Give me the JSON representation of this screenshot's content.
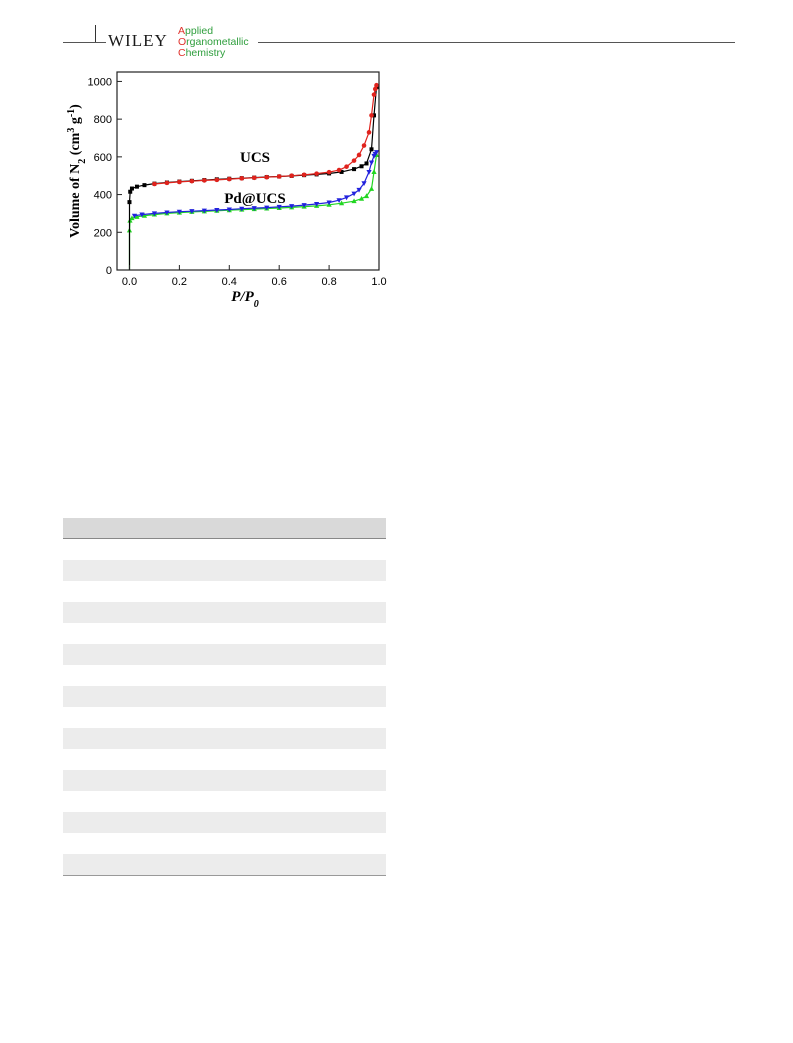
{
  "header": {
    "publisher": "WILEY",
    "journal": {
      "line1_cap": "A",
      "line1_rest": "pplied",
      "line2_cap": "O",
      "line2_rest": "rganometallic",
      "line3_cap": "C",
      "line3_rest": "hemistry"
    }
  },
  "chart_data": {
    "type": "line",
    "title": "",
    "xlabel": "P/P0",
    "ylabel": "Volume of N2 (cm3 g-1)",
    "xlim": [
      -0.05,
      1.0
    ],
    "ylim": [
      0,
      1050
    ],
    "xticks": [
      "0.0",
      "0.2",
      "0.4",
      "0.6",
      "0.8",
      "1.0"
    ],
    "yticks": [
      "0",
      "200",
      "400",
      "600",
      "800",
      "1000"
    ],
    "annotations": [
      "UCS",
      "Pd@UCS"
    ],
    "colors": {
      "ucs_ads": "#000000",
      "ucs_des": "#e0221c",
      "pd_ads": "#22d622",
      "pd_des": "#2222dd"
    },
    "series": [
      {
        "x": [
          0.0,
          0.0,
          0.003,
          0.01,
          0.03,
          0.06,
          0.1,
          0.15,
          0.2,
          0.25,
          0.3,
          0.35,
          0.4,
          0.45,
          0.5,
          0.55,
          0.6,
          0.65,
          0.7,
          0.75,
          0.8,
          0.85,
          0.9,
          0.93,
          0.95,
          0.97,
          0.98,
          0.99
        ],
        "y": [
          0,
          360,
          415,
          432,
          442,
          450,
          458,
          464,
          469,
          473,
          477,
          481,
          484,
          487,
          490,
          493,
          496,
          499,
          503,
          507,
          512,
          520,
          535,
          550,
          565,
          640,
          820,
          970
        ]
      },
      {
        "x": [
          0.99,
          0.985,
          0.98,
          0.97,
          0.96,
          0.94,
          0.92,
          0.9,
          0.87,
          0.84,
          0.8,
          0.75,
          0.7,
          0.65,
          0.6,
          0.55,
          0.5,
          0.45,
          0.4,
          0.35,
          0.3,
          0.25,
          0.2,
          0.15,
          0.1
        ],
        "y": [
          980,
          960,
          930,
          820,
          730,
          660,
          610,
          580,
          548,
          530,
          519,
          511,
          505,
          500,
          496,
          492,
          489,
          486,
          482,
          478,
          475,
          471,
          467,
          462,
          456
        ]
      },
      {
        "x": [
          0.0,
          0.0,
          0.002,
          0.01,
          0.03,
          0.06,
          0.1,
          0.15,
          0.2,
          0.25,
          0.3,
          0.35,
          0.4,
          0.45,
          0.5,
          0.55,
          0.6,
          0.65,
          0.7,
          0.75,
          0.8,
          0.85,
          0.9,
          0.93,
          0.95,
          0.97,
          0.98,
          0.99
        ],
        "y": [
          0,
          210,
          262,
          275,
          282,
          288,
          294,
          300,
          304,
          308,
          311,
          314,
          317,
          320,
          323,
          326,
          329,
          332,
          336,
          340,
          346,
          354,
          365,
          378,
          392,
          430,
          520,
          610
        ]
      },
      {
        "x": [
          0.99,
          0.985,
          0.98,
          0.97,
          0.96,
          0.94,
          0.92,
          0.9,
          0.87,
          0.84,
          0.8,
          0.75,
          0.7,
          0.65,
          0.6,
          0.55,
          0.5,
          0.45,
          0.4,
          0.35,
          0.3,
          0.25,
          0.2,
          0.15,
          0.1,
          0.05,
          0.02
        ],
        "y": [
          625,
          615,
          605,
          570,
          520,
          460,
          425,
          405,
          385,
          370,
          358,
          350,
          344,
          339,
          335,
          331,
          328,
          325,
          321,
          318,
          315,
          312,
          309,
          305,
          300,
          294,
          288
        ]
      }
    ]
  },
  "table": {
    "header_cells": [
      ""
    ],
    "rows": [
      "",
      "",
      "",
      "",
      "",
      "",
      "",
      "",
      "",
      "",
      "",
      "",
      "",
      "",
      "",
      ""
    ]
  }
}
